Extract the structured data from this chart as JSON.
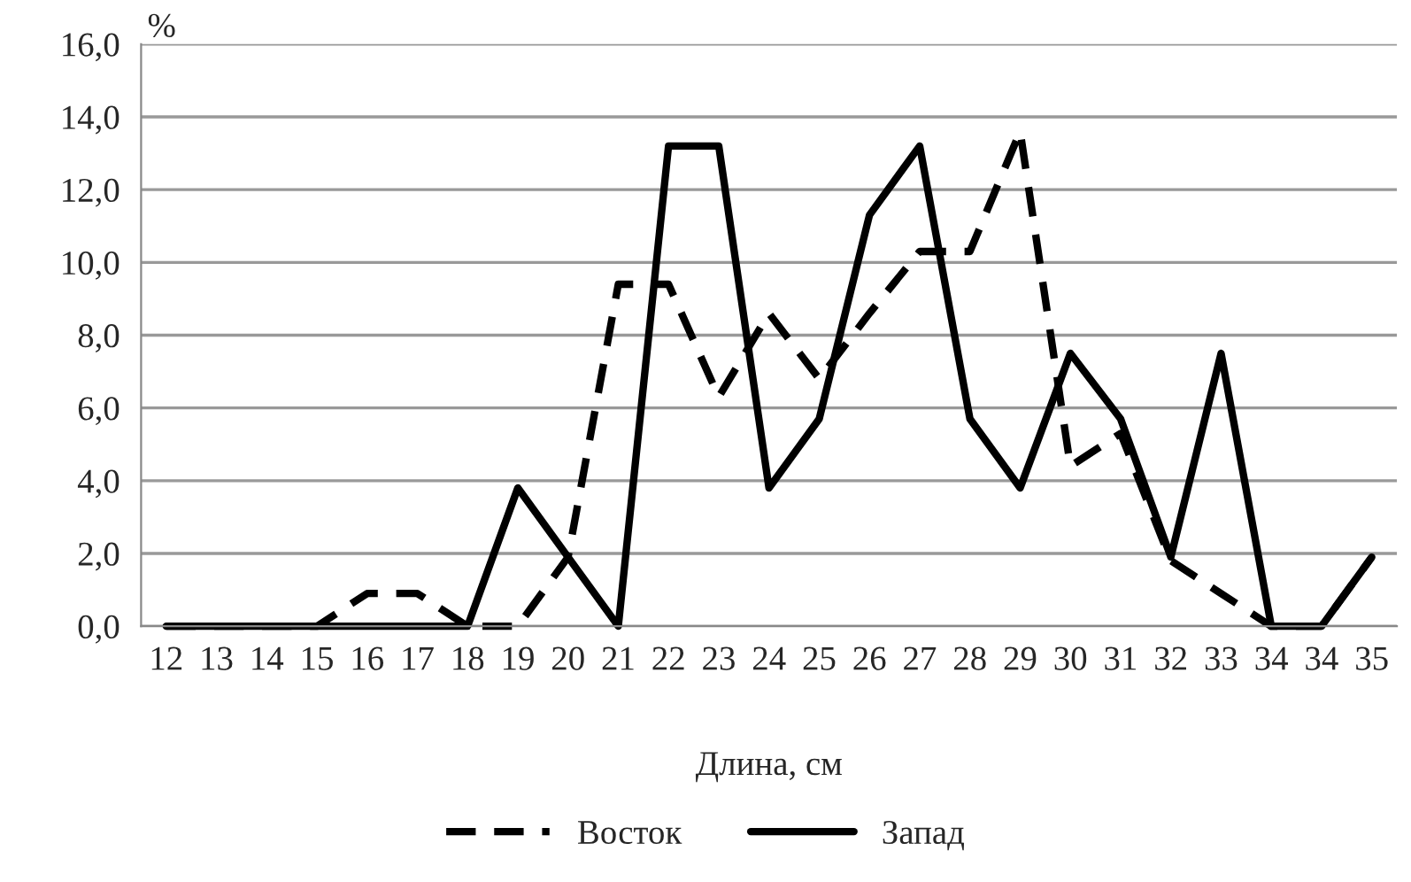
{
  "chart_data": {
    "type": "line",
    "xlabel": "Длина, см",
    "ylabel": "%",
    "categories": [
      "12",
      "13",
      "14",
      "15",
      "16",
      "17",
      "18",
      "19",
      "20",
      "21",
      "22",
      "23",
      "24",
      "25",
      "26",
      "27",
      "28",
      "29",
      "30",
      "31",
      "32",
      "33",
      "34",
      "34",
      "35"
    ],
    "series": [
      {
        "name": "Восток",
        "color": "#000000",
        "line_style": "dashed",
        "values": [
          0,
          0,
          0,
          0,
          0.9,
          0.9,
          0,
          0,
          1.9,
          9.4,
          9.4,
          6.3,
          8.6,
          6.8,
          8.6,
          10.3,
          10.3,
          13.6,
          4.4,
          5.3,
          1.8,
          0.9,
          0,
          0,
          1.9
        ]
      },
      {
        "name": "Запад",
        "color": "#000000",
        "line_style": "solid",
        "values": [
          0,
          0,
          0,
          0,
          0,
          0,
          0,
          3.8,
          1.9,
          0,
          13.2,
          13.2,
          3.8,
          5.7,
          11.3,
          13.2,
          5.7,
          3.8,
          7.5,
          5.7,
          1.9,
          7.5,
          0,
          0,
          1.9
        ]
      }
    ],
    "ylim": [
      0,
      16
    ],
    "yticks": [
      {
        "value": 0,
        "label": "0,0"
      },
      {
        "value": 2,
        "label": "2,0"
      },
      {
        "value": 4,
        "label": "4,0"
      },
      {
        "value": 6,
        "label": "6,0"
      },
      {
        "value": 8,
        "label": "8,0"
      },
      {
        "value": 10,
        "label": "10,0"
      },
      {
        "value": 12,
        "label": "12,0"
      },
      {
        "value": 14,
        "label": "14,0"
      },
      {
        "value": 16,
        "label": "16,0"
      }
    ],
    "grid": "y",
    "legend": "bottom"
  }
}
